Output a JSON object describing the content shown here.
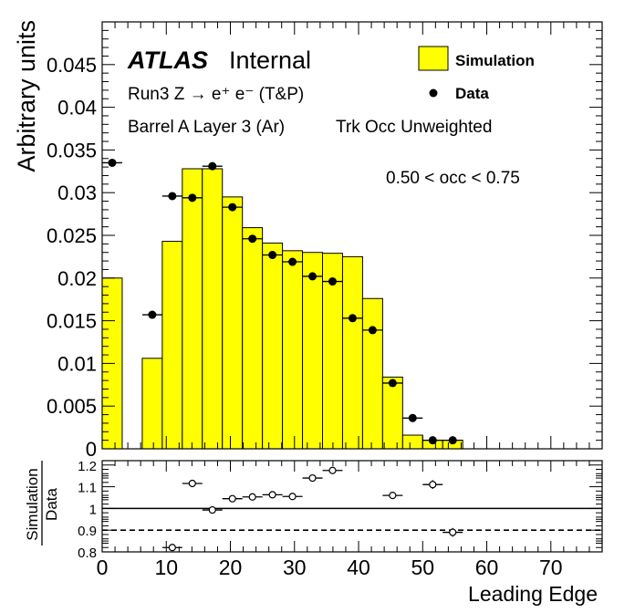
{
  "chart_data": [
    {
      "type": "bar",
      "panel": "main",
      "title": "",
      "ylabel": "Arbitrary units",
      "xlim": [
        0,
        78
      ],
      "ylim": [
        0,
        0.05
      ],
      "y_ticks": [
        "0",
        "0.005",
        "0.01",
        "0.015",
        "0.02",
        "0.025",
        "0.03",
        "0.035",
        "0.04",
        "0.045"
      ],
      "y_tick_values": [
        0,
        0.005,
        0.01,
        0.015,
        0.02,
        0.025,
        0.03,
        0.035,
        0.04,
        0.045
      ],
      "labels": {
        "experiment": "ATLAS",
        "status": "Internal",
        "process": "Run3 Z → e⁺ e⁻ (T&P)",
        "detector": "Barrel A Layer 3 (Ar)",
        "weighting": "Trk Occ Unweighted",
        "occupancy": "0.50 < occ < 0.75"
      },
      "legend": {
        "position": "top-right",
        "entries": [
          {
            "label": "Simulation",
            "style": "filled-box",
            "color": "#ffff00"
          },
          {
            "label": "Data",
            "style": "marker",
            "color": "#000000"
          }
        ]
      },
      "bin_width": 3.125,
      "simulation": {
        "color": "#ffff00",
        "bins": [
          {
            "x0": 0.0,
            "x1": 3.125,
            "value": 0.02
          },
          {
            "x0": 3.125,
            "x1": 6.25,
            "value": 0.0
          },
          {
            "x0": 6.25,
            "x1": 9.375,
            "value": 0.0106
          },
          {
            "x0": 9.375,
            "x1": 12.5,
            "value": 0.0243
          },
          {
            "x0": 12.5,
            "x1": 15.625,
            "value": 0.0328
          },
          {
            "x0": 15.625,
            "x1": 18.75,
            "value": 0.0328
          },
          {
            "x0": 18.75,
            "x1": 21.875,
            "value": 0.0295
          },
          {
            "x0": 21.875,
            "x1": 25.0,
            "value": 0.0259
          },
          {
            "x0": 25.0,
            "x1": 28.125,
            "value": 0.0241
          },
          {
            "x0": 28.125,
            "x1": 31.25,
            "value": 0.0232
          },
          {
            "x0": 31.25,
            "x1": 34.375,
            "value": 0.023
          },
          {
            "x0": 34.375,
            "x1": 37.5,
            "value": 0.0229
          },
          {
            "x0": 37.5,
            "x1": 40.625,
            "value": 0.0225
          },
          {
            "x0": 40.625,
            "x1": 43.75,
            "value": 0.0176
          },
          {
            "x0": 43.75,
            "x1": 46.875,
            "value": 0.0084
          },
          {
            "x0": 46.875,
            "x1": 50.0,
            "value": 0.0016
          },
          {
            "x0": 50.0,
            "x1": 53.125,
            "value": 0.001
          },
          {
            "x0": 53.125,
            "x1": 56.25,
            "value": 0.001
          }
        ]
      },
      "data": {
        "color": "#000000",
        "points": [
          {
            "x": 1.5625,
            "y": 0.0335
          },
          {
            "x": 7.8125,
            "y": 0.0157
          },
          {
            "x": 10.9375,
            "y": 0.0296
          },
          {
            "x": 14.0625,
            "y": 0.0294
          },
          {
            "x": 17.1875,
            "y": 0.0331
          },
          {
            "x": 20.3125,
            "y": 0.0283
          },
          {
            "x": 23.4375,
            "y": 0.0246
          },
          {
            "x": 26.5625,
            "y": 0.0227
          },
          {
            "x": 29.6875,
            "y": 0.0219
          },
          {
            "x": 32.8125,
            "y": 0.0202
          },
          {
            "x": 35.9375,
            "y": 0.0196
          },
          {
            "x": 39.0625,
            "y": 0.0153
          },
          {
            "x": 42.1875,
            "y": 0.0139
          },
          {
            "x": 45.3125,
            "y": 0.0077
          },
          {
            "x": 48.4375,
            "y": 0.0036
          },
          {
            "x": 51.5625,
            "y": 0.001
          },
          {
            "x": 54.6875,
            "y": 0.001
          }
        ]
      }
    },
    {
      "type": "scatter",
      "panel": "ratio",
      "ylabel_top": "Simulation",
      "ylabel_bottom": "Data",
      "xlabel": "Leading Edge",
      "xlim": [
        0,
        78
      ],
      "ylim": [
        0.8,
        1.22
      ],
      "x_ticks": [
        "0",
        "10",
        "20",
        "30",
        "40",
        "50",
        "60",
        "70"
      ],
      "x_tick_values": [
        0,
        10,
        20,
        30,
        40,
        50,
        60,
        70
      ],
      "y_ticks": [
        "0.8",
        "0.9",
        "1",
        "1.1",
        "1.2"
      ],
      "y_tick_values": [
        0.8,
        0.9,
        1.0,
        1.1,
        1.2
      ],
      "reference_lines": [
        {
          "y": 1.0,
          "style": "solid"
        },
        {
          "y": 0.9,
          "style": "dashed"
        }
      ],
      "points": [
        {
          "x": 10.9375,
          "y": 0.82,
          "yerr": 0.0
        },
        {
          "x": 14.0625,
          "y": 1.115,
          "yerr": 0.0
        },
        {
          "x": 17.1875,
          "y": 0.993,
          "yerr": 0.0
        },
        {
          "x": 20.3125,
          "y": 1.045,
          "yerr": 0.0
        },
        {
          "x": 23.4375,
          "y": 1.053,
          "yerr": 0.0
        },
        {
          "x": 26.5625,
          "y": 1.063,
          "yerr": 0.0
        },
        {
          "x": 29.6875,
          "y": 1.055,
          "yerr": 0.0
        },
        {
          "x": 32.8125,
          "y": 1.14,
          "yerr": 0.0
        },
        {
          "x": 35.9375,
          "y": 1.175,
          "yerr": 0.0
        },
        {
          "x": 45.3125,
          "y": 1.06,
          "yerr": 0.0
        },
        {
          "x": 51.5625,
          "y": 1.11,
          "yerr": 0.02
        },
        {
          "x": 54.6875,
          "y": 0.89,
          "yerr": 0.02
        }
      ]
    }
  ]
}
